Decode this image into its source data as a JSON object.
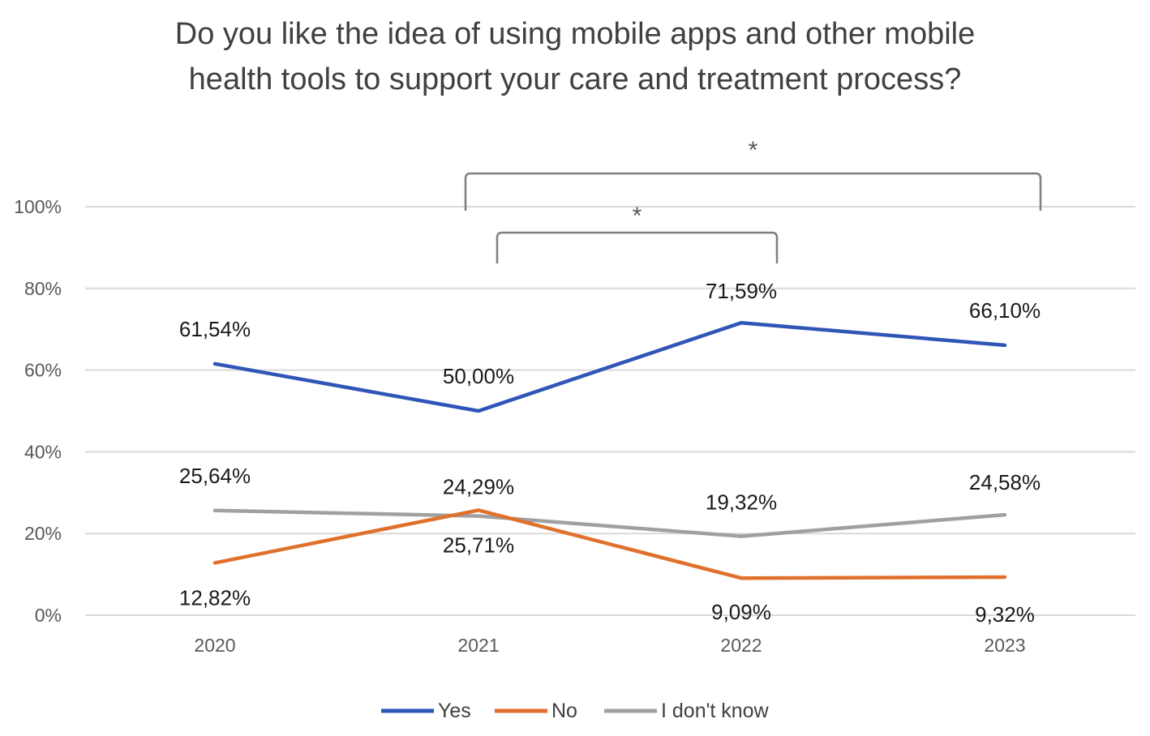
{
  "chart_data": {
    "type": "line",
    "title": [
      "Do you like the idea of using mobile apps and other mobile",
      "health tools to support your care and treatment process?"
    ],
    "x": [
      "2020",
      "2021",
      "2022",
      "2023"
    ],
    "ylim": [
      0,
      100
    ],
    "y_ticks": [
      0,
      20,
      40,
      60,
      80,
      100
    ],
    "y_tick_labels": [
      "0%",
      "20%",
      "40%",
      "60%",
      "80%",
      "100%"
    ],
    "grid": true,
    "legend_position": "bottom",
    "series": [
      {
        "name": "Yes",
        "color": "#2F55B7",
        "values": [
          61.54,
          50.0,
          71.59,
          66.1
        ],
        "labels": [
          "61,54%",
          "50,00%",
          "71,59%",
          "66,10%"
        ]
      },
      {
        "name": "No",
        "color": "#E0712C",
        "values": [
          12.82,
          25.71,
          9.09,
          9.32
        ],
        "labels": [
          "12,82%",
          "25,71%",
          "9,09%",
          "9,32%"
        ]
      },
      {
        "name": "I don't know",
        "color": "#A0A0A0",
        "values": [
          25.64,
          24.29,
          19.32,
          24.58
        ],
        "labels": [
          "25,64%",
          "24,29%",
          "19,32%",
          "24,58%"
        ]
      }
    ],
    "significance": [
      {
        "from": "2021",
        "to": "2023",
        "symbol": "*"
      },
      {
        "from": "2021",
        "to": "2022",
        "symbol": "*"
      }
    ]
  }
}
